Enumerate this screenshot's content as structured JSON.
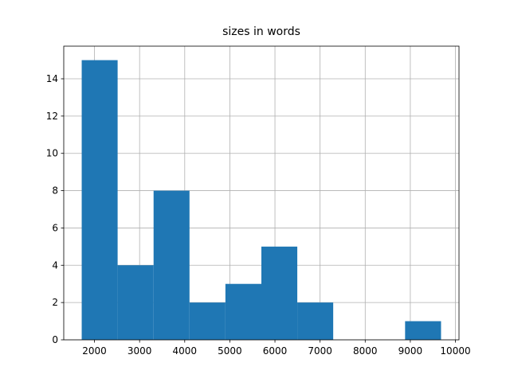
{
  "chart_data": {
    "type": "histogram",
    "title": "sizes in words",
    "bins": [
      1717,
      2513,
      3310,
      4106,
      4902,
      5699,
      6495,
      7291,
      8088,
      8884,
      9681
    ],
    "values": [
      15,
      4,
      8,
      2,
      3,
      5,
      2,
      0,
      0,
      1
    ],
    "color": "#1f77b4",
    "xlim": [
      1319,
      10079
    ],
    "xticks": [
      2000,
      3000,
      4000,
      5000,
      6000,
      7000,
      8000,
      9000,
      10000
    ],
    "ylim": [
      0,
      15.75
    ],
    "yticks": [
      0,
      2,
      4,
      6,
      8,
      10,
      12,
      14
    ],
    "grid": true
  }
}
